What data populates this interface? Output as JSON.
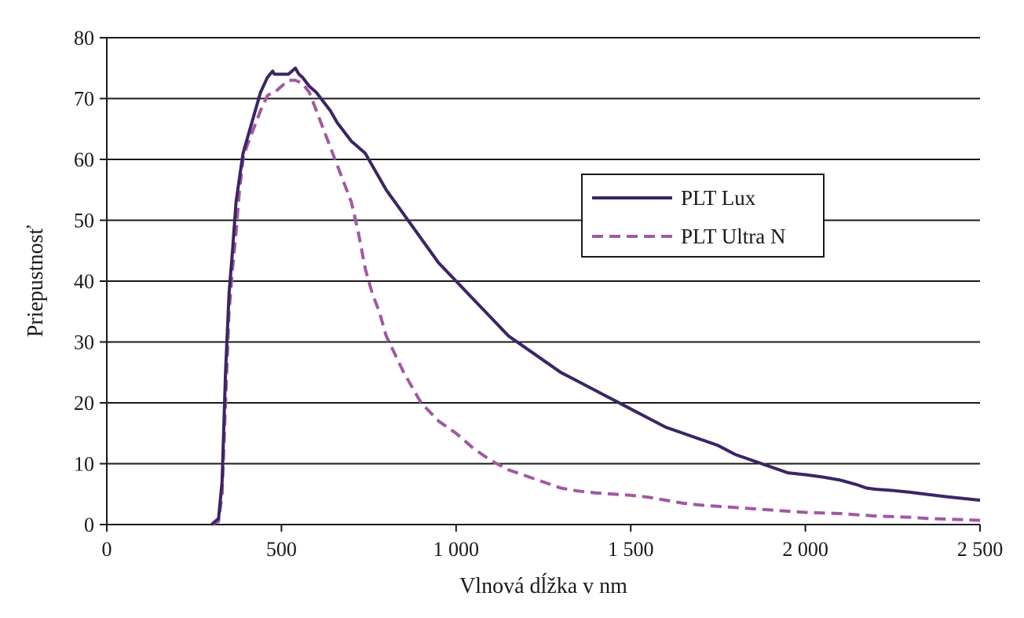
{
  "chart_data": {
    "type": "line",
    "title": "",
    "xlabel": "Vlnová dĺžka v nm",
    "ylabel": "Priepustnosť",
    "xlim": [
      0,
      2500
    ],
    "ylim": [
      0,
      80
    ],
    "x_ticks": [
      0,
      500,
      1000,
      1500,
      2000,
      2500
    ],
    "x_tick_labels": [
      "0",
      "500",
      "1 000",
      "1 500",
      "2 000",
      "2 500"
    ],
    "y_ticks": [
      0,
      10,
      20,
      30,
      40,
      50,
      60,
      70,
      80
    ],
    "y_tick_labels": [
      "0",
      "10",
      "20",
      "30",
      "40",
      "50",
      "60",
      "70",
      "80"
    ],
    "grid": "horizontal",
    "legend_position": "right-center",
    "series": [
      {
        "name": "PLT Lux",
        "color": "#3b2565",
        "style": "solid",
        "x": [
          300,
          320,
          330,
          340,
          350,
          360,
          370,
          380,
          390,
          400,
          420,
          440,
          460,
          475,
          480,
          490,
          500,
          510,
          520,
          530,
          540,
          550,
          560,
          580,
          600,
          620,
          640,
          660,
          680,
          700,
          740,
          760,
          780,
          800,
          850,
          900,
          950,
          1000,
          1050,
          1100,
          1150,
          1200,
          1250,
          1300,
          1350,
          1400,
          1450,
          1500,
          1550,
          1600,
          1650,
          1700,
          1750,
          1800,
          1850,
          1900,
          1950,
          2000,
          2050,
          2100,
          2150,
          2175,
          2200,
          2250,
          2300,
          2400,
          2500
        ],
        "y": [
          0,
          1,
          7,
          25,
          38,
          45,
          53,
          57,
          61,
          63,
          67,
          71,
          73.5,
          74.5,
          74,
          74,
          74,
          74,
          74,
          74.5,
          75,
          74,
          73.5,
          72,
          71,
          69.5,
          68,
          66,
          64.5,
          63,
          61,
          59,
          57,
          55,
          51,
          47,
          43,
          40,
          37,
          34,
          31,
          29,
          27,
          25,
          23.5,
          22,
          20.5,
          19,
          17.5,
          16,
          15,
          14,
          13,
          11.5,
          10.5,
          9.5,
          8.5,
          8.2,
          7.8,
          7.3,
          6.5,
          6,
          5.8,
          5.6,
          5.3,
          4.6,
          4
        ]
      },
      {
        "name": "PLT Ultra N",
        "color": "#a05aa0",
        "style": "dashed",
        "x": [
          300,
          320,
          330,
          340,
          350,
          360,
          370,
          380,
          390,
          400,
          420,
          440,
          460,
          475,
          480,
          500,
          520,
          540,
          560,
          580,
          600,
          620,
          640,
          660,
          680,
          700,
          720,
          740,
          760,
          780,
          800,
          850,
          900,
          950,
          1000,
          1050,
          1100,
          1150,
          1200,
          1250,
          1300,
          1350,
          1400,
          1450,
          1500,
          1550,
          1600,
          1650,
          1700,
          1750,
          1800,
          1850,
          1900,
          1950,
          2000,
          2050,
          2100,
          2150,
          2200,
          2250,
          2300,
          2350,
          2400,
          2450,
          2500
        ],
        "y": [
          0,
          0.5,
          5,
          20,
          35,
          42,
          48,
          55,
          60,
          62,
          65,
          68,
          70.5,
          71,
          71,
          72,
          73,
          73,
          72.5,
          71,
          68,
          65,
          62,
          59,
          56,
          53,
          48,
          42,
          38,
          35,
          31,
          25,
          20,
          17,
          15,
          12.5,
          10.5,
          9,
          8,
          7,
          6,
          5.5,
          5.2,
          5,
          4.8,
          4.5,
          4,
          3.5,
          3.2,
          3,
          2.8,
          2.6,
          2.4,
          2.2,
          2,
          1.9,
          1.8,
          1.6,
          1.4,
          1.3,
          1.2,
          1,
          0.9,
          0.8,
          0.7
        ]
      }
    ]
  }
}
